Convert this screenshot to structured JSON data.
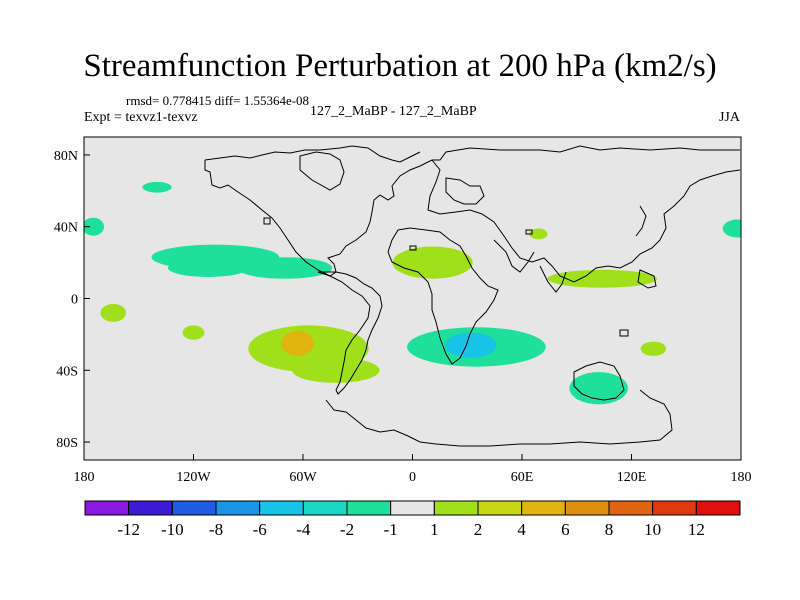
{
  "chart_data": {
    "type": "heatmap",
    "title": "Streamfunction Perturbation at 200 hPa (km2/s)",
    "stats_line": "rmsd= 0.778415 diff= 1.55364e-08",
    "experiment_line": "Expt = texvz1-texvz",
    "center_label": "127_2_MaBP - 127_2_MaBP",
    "season": "JJA",
    "x_ticks": [
      {
        "lon": -180,
        "label": "180"
      },
      {
        "lon": -120,
        "label": "120W"
      },
      {
        "lon": -60,
        "label": "60W"
      },
      {
        "lon": 0,
        "label": "0"
      },
      {
        "lon": 60,
        "label": "60E"
      },
      {
        "lon": 120,
        "label": "120E"
      },
      {
        "lon": 180,
        "label": "180"
      }
    ],
    "y_ticks": [
      {
        "lat": 80,
        "label": "80N"
      },
      {
        "lat": 40,
        "label": "40N"
      },
      {
        "lat": 0,
        "label": "0"
      },
      {
        "lat": -40,
        "label": "40S"
      },
      {
        "lat": -80,
        "label": "80S"
      }
    ],
    "xlim": [
      -180,
      180
    ],
    "ylim": [
      -90,
      90
    ],
    "colorbar": {
      "colors": [
        "#8a1ae0",
        "#3d1ad6",
        "#1f5be3",
        "#1895e6",
        "#17c3e6",
        "#1ad7c3",
        "#1ee09a",
        "#e6e6e6",
        "#9fe01a",
        "#c8d614",
        "#dfb40f",
        "#e0900f",
        "#e0640f",
        "#e0380f",
        "#e00f0f"
      ],
      "labels": [
        "-12",
        "-10",
        "-8",
        "-6",
        "-4",
        "-2",
        "-1",
        "1",
        "2",
        "4",
        "6",
        "8",
        "10",
        "12"
      ]
    },
    "features": [
      {
        "sign": "neg",
        "level": "-1",
        "lon": -112,
        "lat": 17,
        "rx": 22,
        "ry": 5
      },
      {
        "sign": "neg",
        "level": "-1",
        "lon": -108,
        "lat": 23,
        "rx": 35,
        "ry": 7
      },
      {
        "sign": "neg",
        "level": "-1",
        "lon": -70,
        "lat": 17,
        "rx": 26,
        "ry": 6
      },
      {
        "sign": "neg",
        "level": "-1",
        "lon": -140,
        "lat": 62,
        "rx": 8,
        "ry": 3
      },
      {
        "sign": "neg",
        "level": "-1",
        "lon": -175,
        "lat": 40,
        "rx": 6,
        "ry": 5
      },
      {
        "sign": "neg",
        "level": "-1",
        "lon": 178,
        "lat": 39,
        "rx": 8,
        "ry": 5
      },
      {
        "sign": "neg",
        "level": "-1",
        "lon": 35,
        "lat": -27,
        "rx": 38,
        "ry": 11
      },
      {
        "sign": "neg",
        "level": "-1",
        "lon": 102,
        "lat": -50,
        "rx": 16,
        "ry": 9
      },
      {
        "sign": "neg",
        "level": "-4",
        "lon": 32,
        "lat": -26,
        "rx": 14,
        "ry": 7
      },
      {
        "sign": "pos",
        "level": "1",
        "lon": 11,
        "lat": 20,
        "rx": 22,
        "ry": 9
      },
      {
        "sign": "pos",
        "level": "1",
        "lon": 104,
        "lat": 11,
        "rx": 30,
        "ry": 5
      },
      {
        "sign": "pos",
        "level": "1",
        "lon": 69,
        "lat": 36,
        "rx": 5,
        "ry": 3
      },
      {
        "sign": "pos",
        "level": "1",
        "lon": -164,
        "lat": -8,
        "rx": 7,
        "ry": 5
      },
      {
        "sign": "pos",
        "level": "1",
        "lon": -57,
        "lat": -28,
        "rx": 33,
        "ry": 13
      },
      {
        "sign": "pos",
        "level": "1",
        "lon": -42,
        "lat": -40,
        "rx": 24,
        "ry": 7
      },
      {
        "sign": "pos",
        "level": "1",
        "lon": -120,
        "lat": -19,
        "rx": 6,
        "ry": 4
      },
      {
        "sign": "pos",
        "level": "1",
        "lon": 132,
        "lat": -28,
        "rx": 7,
        "ry": 4
      },
      {
        "sign": "pos",
        "level": "4",
        "lon": -63,
        "lat": -25,
        "rx": 9,
        "ry": 7
      }
    ]
  }
}
